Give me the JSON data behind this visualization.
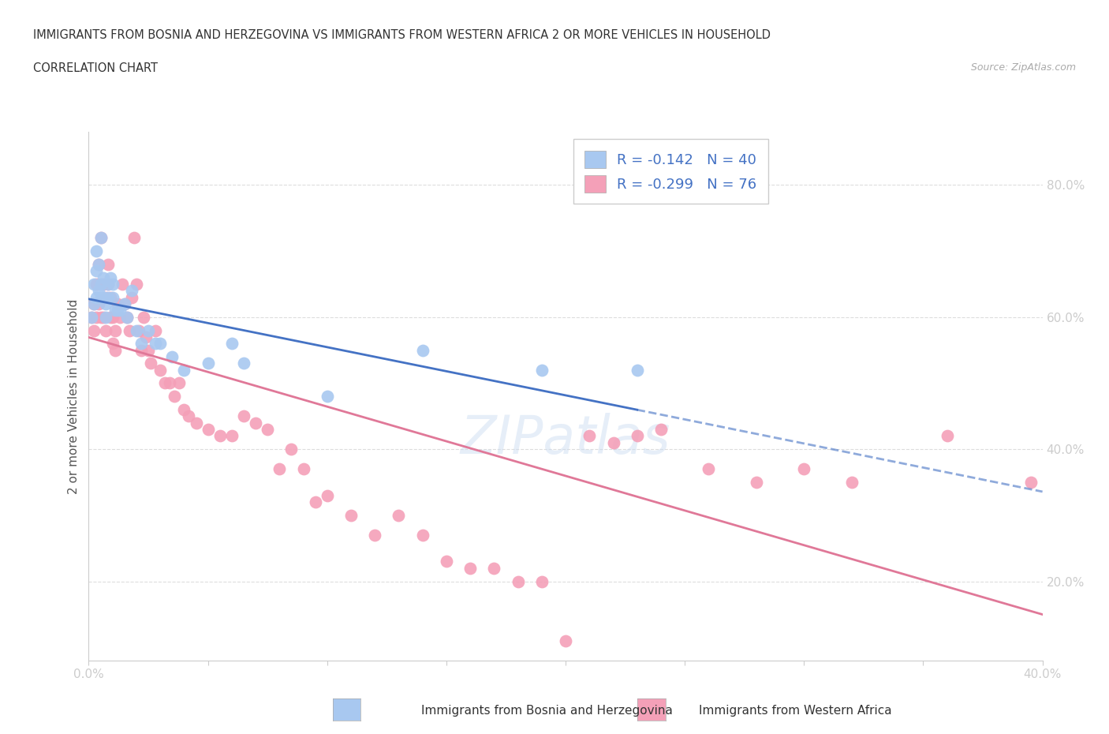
{
  "title_line1": "IMMIGRANTS FROM BOSNIA AND HERZEGOVINA VS IMMIGRANTS FROM WESTERN AFRICA 2 OR MORE VEHICLES IN HOUSEHOLD",
  "title_line2": "CORRELATION CHART",
  "source_text": "Source: ZipAtlas.com",
  "ylabel": "2 or more Vehicles in Household",
  "xlim": [
    0.0,
    0.4
  ],
  "ylim": [
    0.08,
    0.88
  ],
  "y_ticks": [
    0.2,
    0.4,
    0.6,
    0.8
  ],
  "bosnia_R": -0.142,
  "bosnia_N": 40,
  "western_africa_R": -0.299,
  "western_africa_N": 76,
  "bosnia_color": "#a8c8f0",
  "western_africa_color": "#f4a0b8",
  "bosnia_edge_color": "#7aaad8",
  "western_africa_edge_color": "#e07898",
  "trend_bosnia_color": "#4472c4",
  "trend_western_color": "#e07898",
  "bosnia_scatter_x": [
    0.001,
    0.002,
    0.002,
    0.003,
    0.003,
    0.003,
    0.004,
    0.004,
    0.005,
    0.005,
    0.005,
    0.006,
    0.006,
    0.007,
    0.007,
    0.008,
    0.008,
    0.009,
    0.01,
    0.01,
    0.011,
    0.012,
    0.013,
    0.015,
    0.016,
    0.018,
    0.02,
    0.022,
    0.025,
    0.028,
    0.03,
    0.035,
    0.04,
    0.05,
    0.06,
    0.065,
    0.1,
    0.14,
    0.19,
    0.23
  ],
  "bosnia_scatter_y": [
    0.6,
    0.62,
    0.65,
    0.63,
    0.67,
    0.7,
    0.64,
    0.68,
    0.63,
    0.65,
    0.72,
    0.63,
    0.66,
    0.62,
    0.6,
    0.65,
    0.63,
    0.66,
    0.65,
    0.63,
    0.61,
    0.61,
    0.61,
    0.62,
    0.6,
    0.64,
    0.58,
    0.56,
    0.58,
    0.56,
    0.56,
    0.54,
    0.52,
    0.53,
    0.56,
    0.53,
    0.48,
    0.55,
    0.52,
    0.52
  ],
  "western_africa_scatter_x": [
    0.001,
    0.002,
    0.002,
    0.003,
    0.003,
    0.004,
    0.004,
    0.005,
    0.005,
    0.006,
    0.006,
    0.007,
    0.007,
    0.008,
    0.008,
    0.009,
    0.009,
    0.01,
    0.01,
    0.011,
    0.011,
    0.012,
    0.013,
    0.014,
    0.015,
    0.016,
    0.017,
    0.018,
    0.019,
    0.02,
    0.021,
    0.022,
    0.023,
    0.024,
    0.025,
    0.026,
    0.028,
    0.03,
    0.032,
    0.034,
    0.036,
    0.038,
    0.04,
    0.042,
    0.045,
    0.05,
    0.055,
    0.06,
    0.065,
    0.07,
    0.075,
    0.08,
    0.085,
    0.09,
    0.095,
    0.1,
    0.11,
    0.12,
    0.13,
    0.14,
    0.15,
    0.16,
    0.17,
    0.18,
    0.19,
    0.2,
    0.21,
    0.22,
    0.23,
    0.24,
    0.26,
    0.28,
    0.3,
    0.32,
    0.36,
    0.395
  ],
  "western_africa_scatter_y": [
    0.6,
    0.58,
    0.62,
    0.6,
    0.65,
    0.62,
    0.68,
    0.6,
    0.72,
    0.6,
    0.65,
    0.63,
    0.58,
    0.65,
    0.68,
    0.6,
    0.63,
    0.56,
    0.6,
    0.58,
    0.55,
    0.62,
    0.6,
    0.65,
    0.62,
    0.6,
    0.58,
    0.63,
    0.72,
    0.65,
    0.58,
    0.55,
    0.6,
    0.57,
    0.55,
    0.53,
    0.58,
    0.52,
    0.5,
    0.5,
    0.48,
    0.5,
    0.46,
    0.45,
    0.44,
    0.43,
    0.42,
    0.42,
    0.45,
    0.44,
    0.43,
    0.37,
    0.4,
    0.37,
    0.32,
    0.33,
    0.3,
    0.27,
    0.3,
    0.27,
    0.23,
    0.22,
    0.22,
    0.2,
    0.2,
    0.11,
    0.42,
    0.41,
    0.42,
    0.43,
    0.37,
    0.35,
    0.37,
    0.35,
    0.42,
    0.35
  ],
  "watermark_text": "ZIPatlas",
  "watermark_color": "#c8daf0",
  "watermark_alpha": 0.45
}
